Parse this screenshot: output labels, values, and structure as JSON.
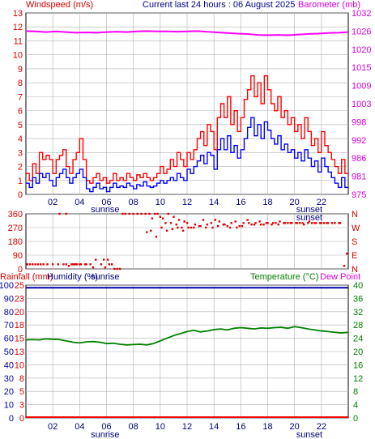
{
  "header": {
    "left_title": "Windspeed (m/s)",
    "center_title": "Current last 24 hours : 06 August 2025",
    "right_title": "Barometer (mb)"
  },
  "labels": {
    "sunrise": "sunrise",
    "sunset": "sunset"
  },
  "colors": {
    "wind": "#ff0000",
    "gust": "#ff0000",
    "avg": "#0000ff",
    "baro": "#ff00ff",
    "dir": "#dd0000",
    "temp": "#008000",
    "humidity": "#0000aa",
    "rain": "#ff0000",
    "grid": "#b0b0b0",
    "night": "#ffffff",
    "day": "#ffffff"
  },
  "chart_data": [
    {
      "type": "line",
      "name": "wind",
      "x_ticks": [
        "02",
        "04",
        "06",
        "08",
        "10",
        "12",
        "14",
        "16",
        "18",
        "20",
        "22"
      ],
      "y_left": {
        "label": "Windspeed (m/s)",
        "min": 0,
        "max": 13,
        "ticks": [
          "0",
          "1",
          "2",
          "3",
          "4",
          "5",
          "6",
          "7",
          "8",
          "9",
          "10",
          "11",
          "12",
          "13"
        ]
      },
      "y_right": {
        "label": "Barometer (mb)",
        "min": 975,
        "max": 1032,
        "ticks": [
          "975",
          "981",
          "986",
          "992",
          "998",
          "1003",
          "1009",
          "1015",
          "1020",
          "1026",
          "1032"
        ]
      },
      "gust": [
        1.5,
        1.0,
        2.2,
        1.5,
        3.0,
        2.5,
        2.8,
        2.5,
        1.5,
        2.5,
        2.8,
        3.2,
        2.0,
        1.5,
        2.5,
        3.0,
        4.0,
        2.5,
        1.0,
        0.8,
        1.2,
        1.5,
        1.0,
        1.2,
        0.8,
        1.0,
        1.5,
        1.0,
        1.2,
        1.0,
        1.5,
        1.2,
        1.0,
        1.4,
        1.2,
        1.5,
        1.2,
        1.0,
        1.2,
        1.5,
        2.0,
        1.5,
        1.8,
        2.5,
        2.0,
        3.0,
        2.5,
        2.0,
        3.0,
        2.5,
        3.2,
        4.0,
        4.5,
        3.5,
        5.0,
        4.5,
        3.2,
        5.5,
        6.5,
        5.5,
        7.0,
        5.0,
        6.0,
        4.5,
        5.5,
        6.8,
        7.5,
        8.5,
        7.0,
        8.0,
        6.5,
        8.5,
        7.5,
        6.5,
        6.0,
        7.0,
        5.5,
        6.0,
        5.0,
        5.5,
        4.5,
        5.0,
        4.0,
        5.5,
        4.5,
        3.5,
        4.0,
        3.0,
        4.5,
        3.5,
        3.0,
        2.5,
        2.0,
        1.5,
        2.5,
        1.5
      ],
      "average": [
        0.8,
        0.5,
        1.2,
        0.8,
        1.5,
        1.2,
        1.5,
        1.0,
        0.6,
        1.2,
        1.5,
        1.8,
        1.2,
        0.8,
        1.2,
        1.5,
        1.8,
        1.2,
        0.4,
        0.2,
        0.5,
        0.8,
        0.4,
        0.5,
        0.2,
        0.5,
        0.8,
        0.5,
        0.6,
        0.5,
        0.8,
        0.6,
        0.4,
        0.7,
        0.6,
        0.9,
        0.6,
        0.5,
        0.6,
        0.8,
        1.0,
        0.8,
        1.0,
        1.2,
        1.0,
        1.5,
        1.2,
        1.0,
        1.8,
        1.5,
        2.0,
        2.4,
        2.8,
        2.2,
        3.0,
        2.8,
        1.8,
        3.2,
        4.0,
        3.2,
        4.2,
        3.0,
        3.5,
        2.6,
        3.2,
        4.0,
        4.8,
        5.5,
        4.2,
        5.0,
        4.0,
        5.2,
        4.6,
        4.0,
        3.6,
        4.2,
        3.2,
        3.6,
        3.0,
        3.2,
        2.6,
        3.0,
        2.4,
        3.2,
        2.6,
        2.0,
        2.4,
        1.6,
        2.6,
        2.0,
        1.6,
        1.2,
        0.8,
        0.5,
        1.2,
        0.5
      ],
      "barometer": [
        1026.3,
        1026.2,
        1026.0,
        1026.2,
        1026.0,
        1025.8,
        1025.9,
        1025.8,
        1026.0,
        1026.1,
        1026.0,
        1026.2,
        1026.3,
        1026.2,
        1026.2,
        1026.1,
        1026.2,
        1026.3,
        1026.1,
        1025.9,
        1025.7,
        1025.5,
        1025.4,
        1025.1,
        1025.0,
        1025.1,
        1025.0,
        1025.2,
        1025.4,
        1025.5,
        1025.7,
        1025.8,
        1026.0
      ],
      "sunrise_hour": 5.9,
      "sunset_hour": 21.1
    },
    {
      "type": "scatter",
      "name": "wind-direction",
      "y_left": {
        "min": 0,
        "max": 360,
        "ticks": [
          "0",
          "90",
          "180",
          "270",
          "360"
        ]
      },
      "y_right": {
        "ticks": [
          "N",
          "E",
          "S",
          "W",
          "N"
        ]
      },
      "x": [
        0.1,
        0.3,
        0.5,
        0.7,
        0.9,
        1.1,
        1.3,
        1.6,
        2.0,
        2.4,
        2.8,
        3.0,
        3.2,
        3.4,
        3.6,
        3.8,
        4.0,
        4.4,
        4.8,
        5.0,
        5.2,
        5.6,
        5.9,
        6.2,
        6.6,
        7.0,
        3.5,
        3.7,
        4.1,
        4.5,
        5.8,
        6.1,
        6.4,
        6.8,
        2.5,
        3.0,
        7.2,
        7.4,
        7.7,
        8.0,
        8.3,
        8.6,
        8.9,
        9.2,
        9.4,
        9.6,
        9.8,
        10.0,
        10.2,
        10.4,
        10.6,
        10.8,
        11.0,
        11.2,
        11.4,
        11.6,
        11.8,
        12.0,
        12.3,
        12.6,
        12.9,
        13.2,
        13.5,
        13.8,
        14.1,
        14.4,
        14.7,
        15.0,
        15.3,
        15.6,
        15.9,
        16.2,
        16.5,
        16.8,
        17.1,
        17.4,
        17.7,
        18.0,
        18.3,
        18.6,
        18.9,
        19.2,
        19.5,
        19.8,
        20.1,
        20.4,
        20.7,
        21.0,
        21.3,
        21.6,
        21.9,
        22.2,
        22.5,
        23.0,
        23.3,
        9.0,
        9.3,
        9.7,
        10.1,
        10.5,
        10.9,
        11.3,
        11.7,
        12.1,
        12.5,
        13.0,
        13.4,
        13.9,
        14.3,
        14.8,
        15.2,
        15.7,
        16.1,
        16.6,
        17.0,
        17.5,
        17.9,
        18.4,
        18.8,
        19.3,
        19.7,
        20.2,
        20.6,
        21.1,
        21.5,
        22.0,
        22.4,
        22.8,
        23.4,
        23.7,
        23.9
      ],
      "y": [
        30,
        30,
        30,
        30,
        30,
        30,
        30,
        30,
        30,
        30,
        30,
        30,
        20,
        30,
        30,
        30,
        30,
        30,
        30,
        10,
        60,
        30,
        10,
        30,
        0,
        0,
        30,
        30,
        30,
        30,
        60,
        60,
        30,
        0,
        360,
        360,
        360,
        360,
        360,
        360,
        360,
        360,
        360,
        360,
        330,
        360,
        360,
        340,
        330,
        300,
        360,
        300,
        340,
        290,
        320,
        270,
        310,
        300,
        270,
        290,
        280,
        320,
        290,
        300,
        320,
        310,
        290,
        280,
        300,
        310,
        280,
        300,
        320,
        290,
        300,
        310,
        290,
        300,
        290,
        300,
        310,
        300,
        300,
        300,
        300,
        300,
        290,
        300,
        300,
        300,
        300,
        300,
        300,
        300,
        300,
        240,
        250,
        210,
        270,
        250,
        260,
        270,
        250,
        270,
        270,
        280,
        270,
        270,
        280,
        290,
        270,
        270,
        280,
        300,
        290,
        290,
        300,
        300,
        290,
        300,
        300,
        300,
        300,
        310,
        300,
        300,
        300,
        300,
        300,
        20,
        100
      ],
      "sunrise_hour": 5.9,
      "sunset_hour": 21.1
    },
    {
      "type": "line",
      "name": "temp-humidity-rain",
      "labels": {
        "rainfall": "Rainfall (mm)",
        "humidity": "Humidity (%)",
        "temperature": "Temperature (°C)",
        "dewpoint": "Dew Point"
      },
      "y_humidity": {
        "min": 0,
        "max": 100,
        "ticks": [
          "0",
          "10",
          "20",
          "30",
          "40",
          "50",
          "60",
          "70",
          "80",
          "90",
          "100"
        ]
      },
      "y_rain": {
        "min": 0,
        "max": 25,
        "ticks": [
          "0",
          "3",
          "5",
          "8",
          "10",
          "13",
          "15",
          "18",
          "20",
          "23",
          "25"
        ]
      },
      "y_temp": {
        "min": 0,
        "max": 40,
        "ticks": [
          "0",
          "4",
          "8",
          "12",
          "16",
          "20",
          "24",
          "28",
          "32",
          "36",
          "40"
        ]
      },
      "humidity": [
        98,
        98,
        98,
        98,
        98,
        98,
        98,
        98,
        98,
        98,
        98,
        98,
        98,
        98,
        98,
        98,
        98,
        98,
        98,
        98,
        98,
        98,
        98,
        98,
        98,
        98,
        98,
        98,
        98,
        98,
        98,
        98,
        98,
        98,
        98,
        98,
        98,
        98,
        98,
        98,
        98,
        98,
        98,
        98,
        98,
        98,
        98,
        98,
        98
      ],
      "rainfall": [
        0,
        0,
        0,
        0,
        0,
        0,
        0,
        0,
        0,
        0,
        0,
        0,
        0,
        0,
        0,
        0,
        0,
        0,
        0,
        0,
        0,
        0,
        0,
        0,
        0,
        0,
        0,
        0,
        0,
        0,
        0,
        0,
        0,
        0,
        0,
        0,
        0,
        0,
        0,
        0,
        0,
        0,
        0,
        0,
        0,
        0,
        0,
        0,
        0
      ],
      "temperature": [
        23.5,
        23.6,
        23.5,
        23.8,
        23.7,
        23.6,
        23.2,
        22.8,
        22.6,
        22.9,
        23.0,
        22.8,
        22.4,
        22.5,
        22.2,
        22.0,
        22.1,
        22.2,
        22.0,
        22.4,
        23.2,
        24.0,
        24.8,
        25.4,
        26.0,
        26.4,
        25.9,
        26.2,
        26.6,
        26.8,
        26.5,
        27.0,
        27.2,
        27.0,
        26.8,
        27.1,
        27.0,
        27.2,
        27.3,
        27.0,
        27.5,
        27.2,
        26.8,
        26.5,
        26.2,
        26.0,
        25.8,
        25.6,
        25.8
      ],
      "sunrise_hour": 5.9,
      "sunset_hour": 21.1
    }
  ]
}
